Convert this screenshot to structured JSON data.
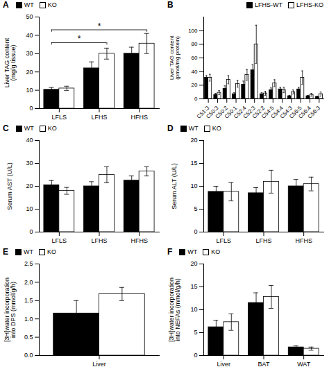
{
  "chart_data": [
    {
      "type": "bar",
      "title": "A",
      "ylabel": "Liver TAG content\n(mg/g tissue)",
      "categories": [
        "LFLS",
        "LFHS",
        "HFHS"
      ],
      "series": [
        {
          "name": "WT",
          "color": "#000000",
          "values": [
            10.3,
            22.0,
            30.0
          ],
          "errors": [
            1.2,
            3.5,
            3.5
          ]
        },
        {
          "name": "KO",
          "color": "#ffffff",
          "values": [
            11.0,
            30.0,
            35.5
          ],
          "errors": [
            1.2,
            3.0,
            5.5
          ]
        }
      ],
      "ylim": [
        0,
        50
      ],
      "yticks": [
        0,
        10,
        20,
        30,
        40,
        50
      ],
      "legend": "upper left",
      "annotations": [
        {
          "text": "*",
          "x1": {
            "category": "LFLS",
            "series": "WT"
          },
          "x2": {
            "category": "LFHS",
            "series": "KO"
          },
          "y": 36
        },
        {
          "text": "*",
          "x1": {
            "category": "LFLS",
            "series": "WT"
          },
          "x2": {
            "category": "HFHS",
            "series": "KO"
          },
          "y": 43
        }
      ]
    },
    {
      "type": "bar",
      "title": "B",
      "ylabel": "Liver TAG content\n(pmol/mg protein)",
      "categories": [
        "C51:3",
        "C50:3",
        "C50:2",
        "C50:1",
        "C52:4",
        "C52:3",
        "C52:2",
        "C54:5",
        "C54:4",
        "C54:3",
        "C56:5",
        "C56:4",
        "C56:3"
      ],
      "series": [
        {
          "name": "LFHS-WT",
          "color": "#000000",
          "values": [
            31.0,
            6.0,
            15.0,
            7.0,
            21.0,
            42.0,
            7.0,
            13.0,
            14.0,
            4.0,
            14.0,
            4.0,
            3.0
          ],
          "errors": [
            3.0,
            2.0,
            4.0,
            2.0,
            5.0,
            8.0,
            2.0,
            3.0,
            3.0,
            1.0,
            3.0,
            1.0,
            1.0
          ]
        },
        {
          "name": "LFHS-KO",
          "color": "#ffffff",
          "values": [
            31.0,
            9.0,
            28.0,
            22.0,
            35.0,
            80.0,
            8.0,
            23.0,
            13.0,
            10.0,
            31.0,
            6.0,
            7.0
          ],
          "errors": [
            5.0,
            3.0,
            6.0,
            5.0,
            8.0,
            28.0,
            3.0,
            5.0,
            4.0,
            3.0,
            10.0,
            2.0,
            3.0
          ]
        }
      ],
      "ylim": [
        0,
        120
      ],
      "yticks": [
        0,
        20,
        40,
        60,
        80,
        100
      ],
      "legend": "upper right"
    },
    {
      "type": "bar",
      "title": "C",
      "ylabel": "Serum AST (U/L)",
      "categories": [
        "LFLS",
        "LFHS",
        "HFHS"
      ],
      "series": [
        {
          "name": "WT",
          "color": "#000000",
          "values": [
            20.5,
            20.0,
            22.5
          ],
          "errors": [
            2.0,
            2.0,
            2.0
          ]
        },
        {
          "name": "KO",
          "color": "#ffffff",
          "values": [
            18.0,
            25.0,
            26.5
          ],
          "errors": [
            1.5,
            3.5,
            2.0
          ]
        }
      ],
      "ylim": [
        0,
        40
      ],
      "yticks": [
        0,
        10,
        20,
        30,
        40
      ],
      "legend": "upper left"
    },
    {
      "type": "bar",
      "title": "D",
      "ylabel": "Serum ALT (U/L)",
      "categories": [
        "LFLS",
        "LFHS",
        "HFHS"
      ],
      "series": [
        {
          "name": "WT",
          "color": "#000000",
          "values": [
            8.8,
            8.5,
            10.0
          ],
          "errors": [
            1.2,
            1.2,
            1.5
          ]
        },
        {
          "name": "KO",
          "color": "#ffffff",
          "values": [
            8.8,
            11.0,
            10.5
          ],
          "errors": [
            2.0,
            2.5,
            1.5
          ]
        }
      ],
      "ylim": [
        0,
        20
      ],
      "yticks": [
        0,
        5,
        10,
        15,
        20
      ],
      "legend": "upper left"
    },
    {
      "type": "bar",
      "title": "E",
      "ylabel": "[3H]water incorporation\ninto DPS (mmol/g/h)",
      "categories": [
        "Liver"
      ],
      "series": [
        {
          "name": "WT",
          "color": "#000000",
          "values": [
            1.15
          ],
          "errors": [
            0.35
          ]
        },
        {
          "name": "KO",
          "color": "#ffffff",
          "values": [
            1.68
          ],
          "errors": [
            0.18
          ]
        }
      ],
      "ylim": [
        0,
        2.5
      ],
      "yticks": [
        {
          "value": 0,
          "label": "0.0"
        },
        0.5,
        {
          "value": 1,
          "label": "1.0"
        },
        1.5,
        {
          "value": 2,
          "label": "2.0"
        },
        2.5
      ],
      "legend": "upper left"
    },
    {
      "type": "bar",
      "title": "F",
      "ylabel": "[3H]water incorporation\ninto NEFAs (mmol/g/h)",
      "categories": [
        "Liver",
        "BAT",
        "WAT"
      ],
      "series": [
        {
          "name": "WT",
          "color": "#000000",
          "values": [
            6.2,
            11.5,
            1.8
          ],
          "errors": [
            1.5,
            2.2,
            0.3
          ]
        },
        {
          "name": "KO",
          "color": "#ffffff",
          "values": [
            7.3,
            12.8,
            1.5
          ],
          "errors": [
            1.8,
            2.5,
            0.35
          ]
        }
      ],
      "ylim": [
        0,
        20
      ],
      "yticks": [
        0,
        5,
        10,
        15,
        20
      ],
      "legend": "upper left"
    }
  ]
}
